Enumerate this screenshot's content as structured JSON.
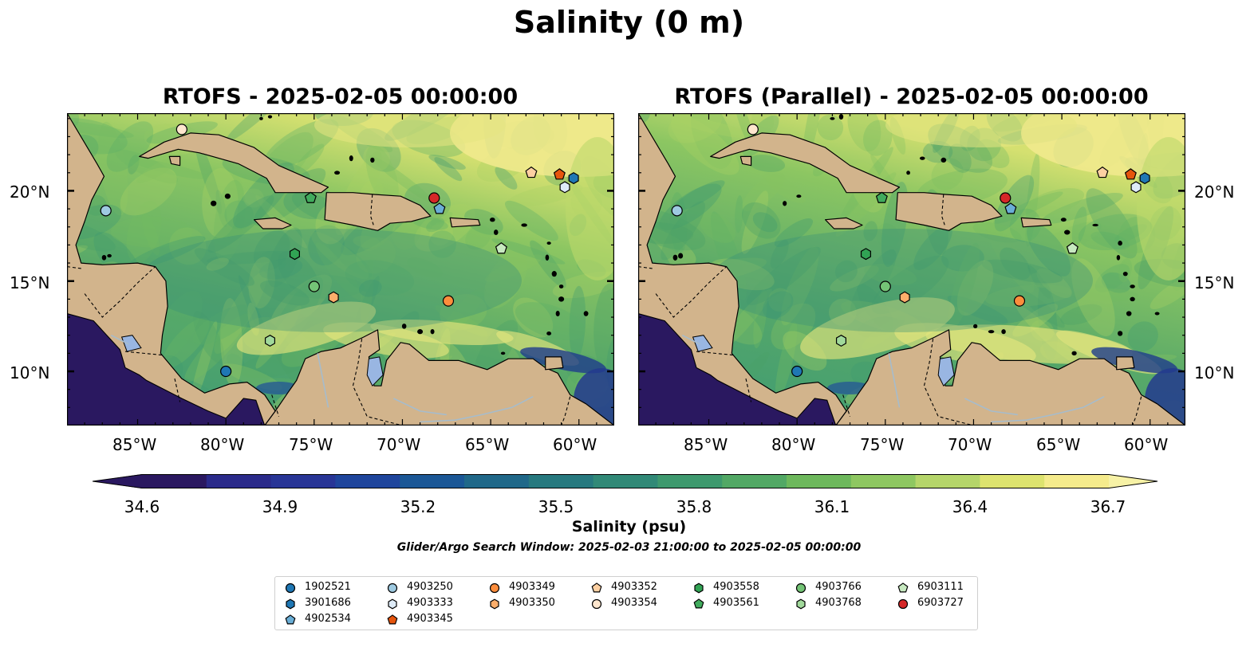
{
  "figure": {
    "title": "Salinity (0 m)",
    "panels": [
      {
        "title": "RTOFS - 2025-02-05 00:00:00"
      },
      {
        "title": "RTOFS (Parallel) - 2025-02-05 00:00:00"
      }
    ],
    "lat_ticks": [
      "20°N",
      "15°N",
      "10°N"
    ],
    "lon_ticks": [
      "85°W",
      "80°W",
      "75°W",
      "70°W",
      "65°W",
      "60°W"
    ],
    "extent": {
      "lon": [
        -89,
        -58
      ],
      "lat": [
        7,
        24.3
      ]
    }
  },
  "colorbar": {
    "label": "Salinity (psu)",
    "ticks": [
      "34.6",
      "34.9",
      "35.2",
      "35.5",
      "35.8",
      "36.1",
      "36.4",
      "36.7"
    ],
    "colors": [
      "#2a1860",
      "#2a2a8a",
      "#283596",
      "#1f459c",
      "#1b5796",
      "#206889",
      "#27797f",
      "#318977",
      "#3e996e",
      "#52a865",
      "#6db85c",
      "#8ec761",
      "#b5d56a",
      "#dde36f",
      "#f5eb8c"
    ]
  },
  "search_window": "Glider/Argo Search Window: 2025-02-03 21:00:00 to 2025-02-05 00:00:00",
  "colors": {
    "land": "#d2b48c",
    "ocean_mid": "#58a868",
    "deep": "#2a1860",
    "lake": "#99b6e2"
  },
  "legend": {
    "items": [
      {
        "id": "1902521",
        "marker": "circle",
        "color": "#1f77b4"
      },
      {
        "id": "3901686",
        "marker": "hexagon",
        "color": "#1f77b4"
      },
      {
        "id": "4902534",
        "marker": "pentagon",
        "color": "#6aaed6"
      },
      {
        "id": "4903250",
        "marker": "circle",
        "color": "#9ecae1"
      },
      {
        "id": "4903333",
        "marker": "hexagon",
        "color": "#deebf7"
      },
      {
        "id": "4903345",
        "marker": "pentagon",
        "color": "#e6550d"
      },
      {
        "id": "4903349",
        "marker": "circle",
        "color": "#fd8d3c"
      },
      {
        "id": "4903350",
        "marker": "hexagon",
        "color": "#fdae6b"
      },
      {
        "id": "4903352",
        "marker": "pentagon",
        "color": "#fdd0a2"
      },
      {
        "id": "4903354",
        "marker": "circle",
        "color": "#fee6ce"
      },
      {
        "id": "4903558",
        "marker": "hexagon",
        "color": "#31a354"
      },
      {
        "id": "4903561",
        "marker": "pentagon",
        "color": "#41ab5d"
      },
      {
        "id": "4903766",
        "marker": "circle",
        "color": "#74c476"
      },
      {
        "id": "4903768",
        "marker": "hexagon",
        "color": "#a1d99b"
      },
      {
        "id": "6903111",
        "marker": "pentagon",
        "color": "#c7e9c0"
      },
      {
        "id": "6903727",
        "marker": "circle",
        "color": "#d62728"
      }
    ]
  },
  "floats": [
    {
      "id": "1902521",
      "lon": -80.0,
      "lat": 10.0
    },
    {
      "id": "3901686",
      "lon": -60.3,
      "lat": 20.7
    },
    {
      "id": "4902534",
      "lon": -67.9,
      "lat": 19.0
    },
    {
      "id": "4903250",
      "lon": -86.8,
      "lat": 18.9
    },
    {
      "id": "4903333",
      "lon": -60.8,
      "lat": 20.2
    },
    {
      "id": "4903345",
      "lon": -61.1,
      "lat": 20.9
    },
    {
      "id": "4903349",
      "lon": -67.4,
      "lat": 13.9
    },
    {
      "id": "4903350",
      "lon": -73.9,
      "lat": 14.1
    },
    {
      "id": "4903352",
      "lon": -62.7,
      "lat": 21.0
    },
    {
      "id": "4903354",
      "lon": -82.5,
      "lat": 23.4
    },
    {
      "id": "4903558",
      "lon": -76.1,
      "lat": 16.5
    },
    {
      "id": "4903561",
      "lon": -75.2,
      "lat": 19.6
    },
    {
      "id": "4903766",
      "lon": -75.0,
      "lat": 14.7
    },
    {
      "id": "4903768",
      "lon": -77.5,
      "lat": 11.7
    },
    {
      "id": "6903111",
      "lon": -64.4,
      "lat": 16.8
    },
    {
      "id": "6903727",
      "lon": -68.2,
      "lat": 19.6
    }
  ]
}
